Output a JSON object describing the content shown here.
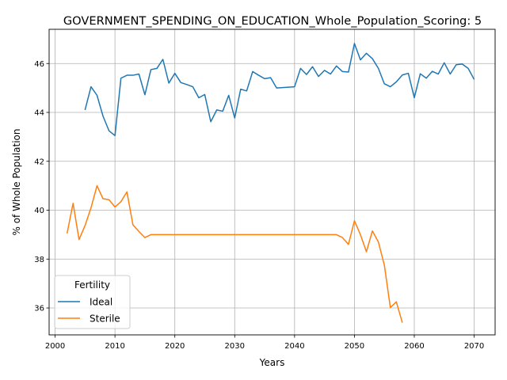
{
  "chart_data": {
    "type": "line",
    "title": "GOVERNMENT_SPENDING_ON_EDUCATION_Whole_Population_Scoring: 5",
    "xlabel": "Years",
    "ylabel": "% of Whole Population",
    "xlim": [
      1999,
      2073.5
    ],
    "ylim": [
      34.9,
      47.4
    ],
    "xticks": [
      2000,
      2010,
      2020,
      2030,
      2040,
      2050,
      2060,
      2070
    ],
    "yticks": [
      36,
      38,
      40,
      42,
      44,
      46
    ],
    "grid": true,
    "legend": {
      "title": "Fertility",
      "position": "lower-left"
    },
    "series": [
      {
        "name": "Ideal",
        "color": "#1f77b4",
        "points": [
          [
            2005,
            44.1
          ],
          [
            2006,
            45.05
          ],
          [
            2007,
            44.7
          ],
          [
            2008,
            43.85
          ],
          [
            2009,
            43.25
          ],
          [
            2010,
            43.05
          ],
          [
            2011,
            45.4
          ],
          [
            2012,
            45.52
          ],
          [
            2013,
            45.52
          ],
          [
            2014,
            45.57
          ],
          [
            2015,
            44.72
          ],
          [
            2016,
            45.75
          ],
          [
            2017,
            45.8
          ],
          [
            2018,
            46.17
          ],
          [
            2019,
            45.2
          ],
          [
            2020,
            45.6
          ],
          [
            2021,
            45.22
          ],
          [
            2022,
            45.14
          ],
          [
            2023,
            45.05
          ],
          [
            2024,
            44.6
          ],
          [
            2025,
            44.73
          ],
          [
            2026,
            43.62
          ],
          [
            2027,
            44.1
          ],
          [
            2028,
            44.05
          ],
          [
            2029,
            44.7
          ],
          [
            2030,
            43.77
          ],
          [
            2031,
            44.95
          ],
          [
            2032,
            44.88
          ],
          [
            2033,
            45.67
          ],
          [
            2034,
            45.52
          ],
          [
            2035,
            45.38
          ],
          [
            2036,
            45.42
          ],
          [
            2037,
            45.0
          ],
          [
            2040,
            45.05
          ],
          [
            2041,
            45.8
          ],
          [
            2042,
            45.55
          ],
          [
            2043,
            45.87
          ],
          [
            2044,
            45.47
          ],
          [
            2045,
            45.72
          ],
          [
            2046,
            45.57
          ],
          [
            2047,
            45.9
          ],
          [
            2048,
            45.67
          ],
          [
            2049,
            45.65
          ],
          [
            2050,
            46.82
          ],
          [
            2051,
            46.15
          ],
          [
            2052,
            46.42
          ],
          [
            2053,
            46.2
          ],
          [
            2054,
            45.8
          ],
          [
            2055,
            45.17
          ],
          [
            2056,
            45.05
          ],
          [
            2057,
            45.25
          ],
          [
            2058,
            45.53
          ],
          [
            2059,
            45.6
          ],
          [
            2060,
            44.6
          ],
          [
            2061,
            45.58
          ],
          [
            2062,
            45.4
          ],
          [
            2063,
            45.68
          ],
          [
            2064,
            45.57
          ],
          [
            2065,
            46.03
          ],
          [
            2066,
            45.57
          ],
          [
            2067,
            45.95
          ],
          [
            2068,
            45.98
          ],
          [
            2069,
            45.8
          ],
          [
            2070,
            45.35
          ]
        ]
      },
      {
        "name": "Sterile",
        "color": "#ff7f0e",
        "points": [
          [
            2002,
            39.05
          ],
          [
            2003,
            40.28
          ],
          [
            2004,
            38.8
          ],
          [
            2005,
            39.37
          ],
          [
            2006,
            40.1
          ],
          [
            2007,
            41.0
          ],
          [
            2008,
            40.47
          ],
          [
            2009,
            40.43
          ],
          [
            2010,
            40.13
          ],
          [
            2011,
            40.35
          ],
          [
            2012,
            40.75
          ],
          [
            2013,
            39.4
          ],
          [
            2014,
            39.13
          ],
          [
            2015,
            38.88
          ],
          [
            2016,
            39.0
          ],
          [
            2047,
            39.0
          ],
          [
            2048,
            38.88
          ],
          [
            2049,
            38.6
          ],
          [
            2050,
            39.57
          ],
          [
            2051,
            39.0
          ],
          [
            2052,
            38.3
          ],
          [
            2053,
            39.15
          ],
          [
            2054,
            38.7
          ],
          [
            2055,
            37.75
          ],
          [
            2056,
            36.02
          ],
          [
            2057,
            36.25
          ],
          [
            2058,
            35.4
          ]
        ]
      }
    ]
  }
}
